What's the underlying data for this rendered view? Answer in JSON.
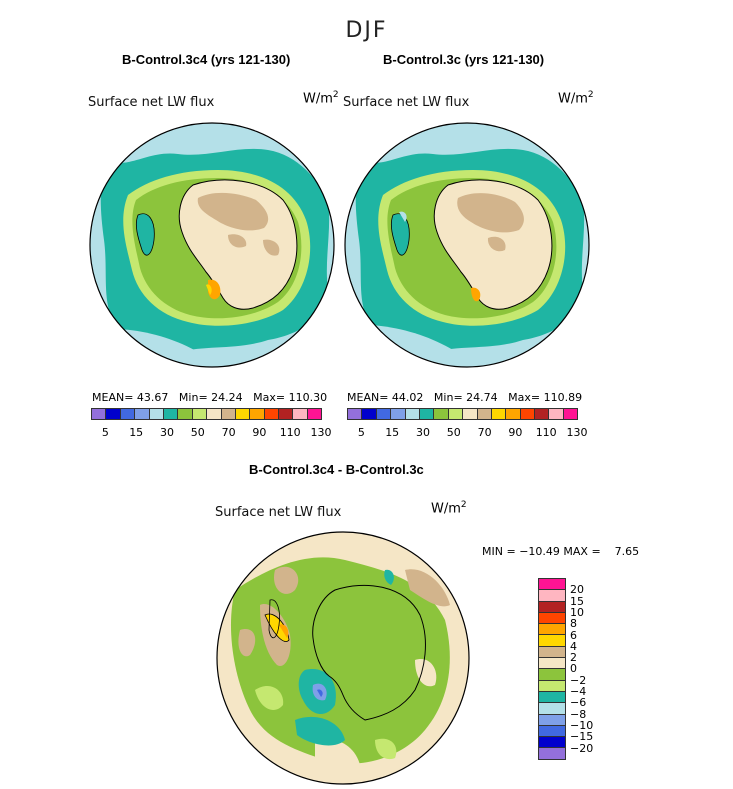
{
  "season": "DJF",
  "colors": {
    "ocean_open": "#b4e0e8",
    "ocean_teal": "#1fb5a3",
    "ice_green": "#8cc43c",
    "lightgreen": "#c5e870",
    "land_cream": "#f5e6c6",
    "land_tan": "#d2b48c",
    "warm_yellow": "#ffd700",
    "warm_orange": "#ffa500",
    "coast": "#000000"
  },
  "chart_data": [
    {
      "type": "heatmap",
      "panel": "left",
      "title": "B-Control.3c4 (yrs 121-130)",
      "variable": "Surface net LW flux",
      "units": "W/m",
      "units_exp": "2",
      "stats": {
        "mean_label": "MEAN=",
        "mean": "43.67",
        "min_label": "Min=",
        "min": "24.24",
        "max_label": "Max=",
        "max": "110.30"
      },
      "levels": [
        "5",
        "15",
        "30",
        "50",
        "70",
        "90",
        "110",
        "130"
      ],
      "colorbar": [
        "#9370db",
        "#0000cd",
        "#4169e1",
        "#7fa0e8",
        "#b4e0e8",
        "#1fb5a3",
        "#8cc43c",
        "#c5e870",
        "#f5e6c6",
        "#d2b48c",
        "#ffd700",
        "#ffa500",
        "#ff4500",
        "#b22222",
        "#ffb6c1",
        "#ff1493"
      ]
    },
    {
      "type": "heatmap",
      "panel": "right",
      "title": "B-Control.3c (yrs 121-130)",
      "variable": "Surface net LW flux",
      "units": "W/m",
      "units_exp": "2",
      "stats": {
        "mean_label": "MEAN=",
        "mean": "44.02",
        "min_label": "Min=",
        "min": "24.74",
        "max_label": "Max=",
        "max": "110.89"
      },
      "levels": [
        "5",
        "15",
        "30",
        "50",
        "70",
        "90",
        "110",
        "130"
      ],
      "colorbar": [
        "#9370db",
        "#0000cd",
        "#4169e1",
        "#7fa0e8",
        "#b4e0e8",
        "#1fb5a3",
        "#8cc43c",
        "#c5e870",
        "#f5e6c6",
        "#d2b48c",
        "#ffd700",
        "#ffa500",
        "#ff4500",
        "#b22222",
        "#ffb6c1",
        "#ff1493"
      ]
    },
    {
      "type": "heatmap",
      "panel": "difference",
      "title": "B-Control.3c4 - B-Control.3c",
      "variable": "Surface net LW flux",
      "units": "W/m",
      "units_exp": "2",
      "stats": {
        "min_label": "MIN =",
        "min": "−10.49",
        "max_label": "MAX =",
        "max": "7.65"
      },
      "levels": [
        "20",
        "15",
        "10",
        "8",
        "6",
        "4",
        "2",
        "0",
        "−2",
        "−4",
        "−6",
        "−8",
        "−10",
        "−15",
        "−20"
      ],
      "colorbar": [
        "#ff1493",
        "#ffb6c1",
        "#b22222",
        "#ff4500",
        "#ffa500",
        "#ffd700",
        "#d2b48c",
        "#f5e6c6",
        "#8cc43c",
        "#c5e870",
        "#1fb5a3",
        "#b4e0e8",
        "#7fa0e8",
        "#4169e1",
        "#0000cd",
        "#9370db"
      ]
    }
  ]
}
